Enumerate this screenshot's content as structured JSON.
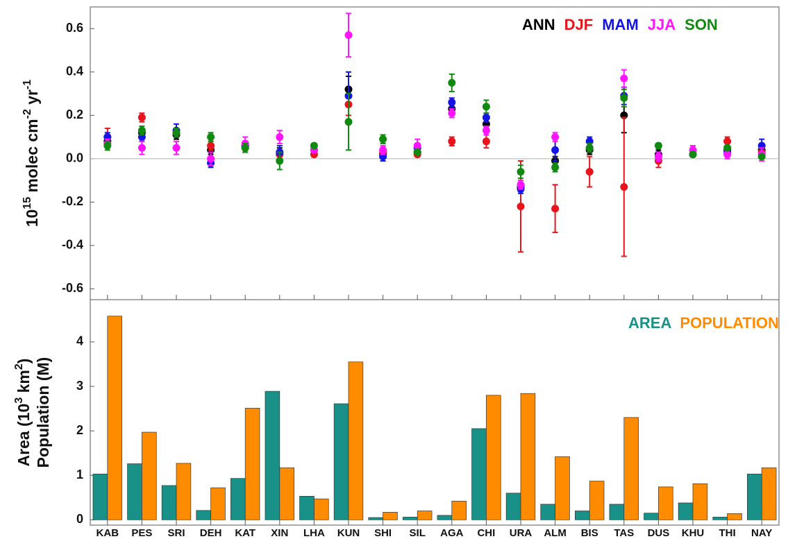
{
  "chart_data": [
    {
      "type": "errorbar-scatter",
      "ylabel": [
        "10",
        "15",
        " molec cm",
        "-2",
        " yr",
        "-1"
      ],
      "ylim": [
        -0.65,
        0.7
      ],
      "yticks": [
        {
          "value": -0.6,
          "label": "-0.6"
        },
        {
          "value": -0.4,
          "label": "-0.4"
        },
        {
          "value": -0.2,
          "label": "-0.2"
        },
        {
          "value": 0,
          "label": "0.0"
        },
        0.2,
        0.4,
        0.6
      ],
      "zero_line": true,
      "legend": "upper right",
      "series": [
        {
          "name": "ANN",
          "color": "#000000",
          "values": [
            0.08,
            0.12,
            0.11,
            0.04,
            0.05,
            0.02,
            0.04,
            0.32,
            0.02,
            0.03,
            0.23,
            0.16,
            -0.13,
            -0.01,
            0.04,
            0.2,
            0.02,
            0.02,
            0.04,
            0.04
          ],
          "errors": [
            0.02,
            0.02,
            0.02,
            0.02,
            0.02,
            0.03,
            0.01,
            0.06,
            0.02,
            0.01,
            0.02,
            0.02,
            0.02,
            0.02,
            0.02,
            0.08,
            0.02,
            0.01,
            0.01,
            0.02
          ]
        },
        {
          "name": "DJF",
          "color": "#e8141c",
          "values": [
            0.1,
            0.19,
            0.12,
            0.06,
            0.06,
            0.02,
            0.02,
            0.25,
            0.03,
            0.02,
            0.08,
            0.08,
            -0.22,
            -0.23,
            -0.06,
            -0.13,
            -0.01,
            0.02,
            0.08,
            0.03
          ],
          "errors": [
            0.04,
            0.02,
            0.02,
            0.02,
            0.02,
            0.02,
            0.01,
            0.05,
            0.02,
            0.01,
            0.02,
            0.03,
            0.21,
            0.11,
            0.07,
            0.32,
            0.03,
            0.01,
            0.02,
            0.02
          ]
        },
        {
          "name": "MAM",
          "color": "#1414e6",
          "values": [
            0.1,
            0.1,
            0.13,
            -0.02,
            0.06,
            0.03,
            0.04,
            0.29,
            0.01,
            0.05,
            0.26,
            0.19,
            -0.14,
            0.04,
            0.08,
            0.29,
            0.01,
            0.02,
            0.03,
            0.06
          ],
          "errors": [
            0.02,
            0.02,
            0.03,
            0.02,
            0.02,
            0.03,
            0.01,
            0.11,
            0.02,
            0.02,
            0.02,
            0.02,
            0.02,
            0.05,
            0.02,
            0.04,
            0.02,
            0.01,
            0.01,
            0.03
          ]
        },
        {
          "name": "JJA",
          "color": "#ff14ff",
          "values": [
            0.07,
            0.05,
            0.05,
            0.0,
            0.07,
            0.1,
            0.04,
            0.57,
            0.04,
            0.06,
            0.21,
            0.13,
            -0.12,
            0.1,
            0.05,
            0.37,
            0.01,
            0.04,
            0.02,
            0.02
          ],
          "errors": [
            0.02,
            0.03,
            0.03,
            0.03,
            0.03,
            0.03,
            0.01,
            0.1,
            0.02,
            0.03,
            0.02,
            0.02,
            0.02,
            0.02,
            0.02,
            0.04,
            0.02,
            0.02,
            0.02,
            0.03
          ]
        },
        {
          "name": "SON",
          "color": "#0f8a0f",
          "values": [
            0.06,
            0.13,
            0.12,
            0.1,
            0.05,
            -0.01,
            0.06,
            0.17,
            0.09,
            0.03,
            0.35,
            0.24,
            -0.06,
            -0.04,
            0.05,
            0.28,
            0.06,
            0.02,
            0.05,
            0.01
          ],
          "errors": [
            0.02,
            0.02,
            0.02,
            0.02,
            0.02,
            0.04,
            0.01,
            0.13,
            0.02,
            0.01,
            0.04,
            0.03,
            0.03,
            0.02,
            0.02,
            0.04,
            0.01,
            0.01,
            0.01,
            0.01
          ]
        }
      ]
    },
    {
      "type": "bar",
      "ylabel": [
        "Area (10",
        "3",
        " km",
        "2",
        ")"
      ],
      "ylabel2": "Population (M)",
      "categories": [
        "KAB",
        "PES",
        "SRI",
        "DEH",
        "KAT",
        "XIN",
        "LHA",
        "KUN",
        "SHI",
        "SIL",
        "AGA",
        "CHI",
        "URA",
        "ALM",
        "BIS",
        "TAS",
        "DUS",
        "KHU",
        "THI",
        "NAY"
      ],
      "ylim": [
        -0.12,
        4.95
      ],
      "yticks": [
        0,
        1,
        2,
        3,
        4
      ],
      "legend": "upper right",
      "series": [
        {
          "name": "AREA",
          "color": "#1a9188",
          "values": [
            1.03,
            1.26,
            0.77,
            0.21,
            0.93,
            2.89,
            0.53,
            2.61,
            0.05,
            0.06,
            0.1,
            2.05,
            0.6,
            0.35,
            0.2,
            0.35,
            0.15,
            0.38,
            0.06,
            1.03
          ]
        },
        {
          "name": "POPULATION",
          "color": "#ff8c00",
          "values": [
            4.58,
            1.97,
            1.27,
            0.72,
            2.51,
            1.17,
            0.47,
            3.55,
            0.17,
            0.2,
            0.42,
            2.8,
            2.84,
            1.42,
            0.87,
            2.3,
            0.74,
            0.81,
            0.14,
            1.17
          ]
        }
      ]
    }
  ]
}
